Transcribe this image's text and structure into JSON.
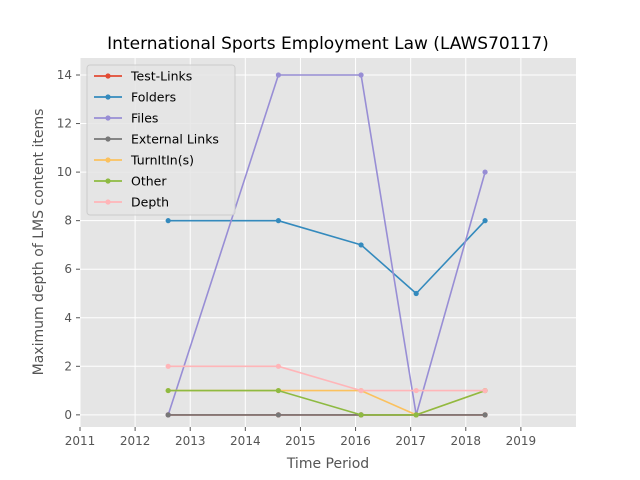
{
  "chart_data": {
    "type": "line",
    "title": "International Sports Employment Law (LAWS70117)",
    "xlabel": "Time Period",
    "ylabel": "Maximum depth of LMS content items",
    "xlim": [
      2011.0,
      2020.0
    ],
    "ylim": [
      -0.5,
      14.7
    ],
    "xticks": [
      2011,
      2012,
      2013,
      2014,
      2015,
      2016,
      2017,
      2018,
      2019
    ],
    "yticks": [
      0,
      2,
      4,
      6,
      8,
      10,
      12,
      14
    ],
    "grid": true,
    "legend_position": "upper-left",
    "x": [
      2012.6,
      2014.6,
      2016.1,
      2017.1,
      2018.35
    ],
    "series": [
      {
        "name": "Test-Links",
        "color": "#e24a33",
        "values": [
          0,
          0,
          0,
          0,
          0
        ]
      },
      {
        "name": "Folders",
        "color": "#348abd",
        "values": [
          8,
          8,
          7,
          5,
          8
        ]
      },
      {
        "name": "Files",
        "color": "#988ed5",
        "values": [
          0,
          14,
          14,
          0,
          10
        ]
      },
      {
        "name": "External Links",
        "color": "#777777",
        "values": [
          0,
          0,
          0,
          0,
          0
        ]
      },
      {
        "name": "TurnItIn(s)",
        "color": "#fbc15e",
        "values": [
          1,
          1,
          1,
          0,
          1
        ]
      },
      {
        "name": "Other",
        "color": "#8eba42",
        "values": [
          1,
          1,
          0,
          0,
          1
        ]
      },
      {
        "name": "Depth",
        "color": "#ffb5b8",
        "values": [
          2,
          2,
          1,
          1,
          1
        ]
      }
    ]
  }
}
